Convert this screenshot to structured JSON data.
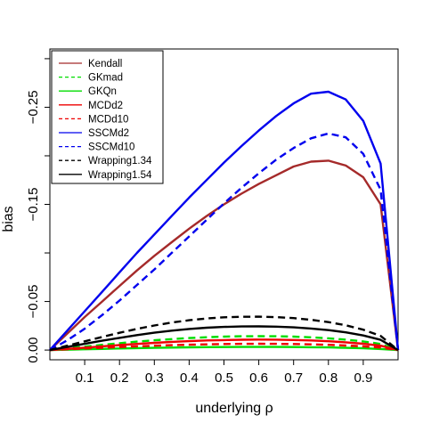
{
  "chart_data": {
    "type": "line",
    "title": "",
    "xlabel": "underlying ρ",
    "ylabel": "bias",
    "xlim": [
      0,
      1
    ],
    "ylim": [
      -0.31,
      0.01
    ],
    "y_reversed": true,
    "x_ticks": [
      {
        "value": 0.1,
        "label": "0.1"
      },
      {
        "value": 0.2,
        "label": "0.2"
      },
      {
        "value": 0.3,
        "label": "0.3"
      },
      {
        "value": 0.4,
        "label": "0.4"
      },
      {
        "value": 0.5,
        "label": "0.5"
      },
      {
        "value": 0.6,
        "label": "0.6"
      },
      {
        "value": 0.7,
        "label": "0.7"
      },
      {
        "value": 0.8,
        "label": "0.8"
      },
      {
        "value": 0.9,
        "label": "0.9"
      }
    ],
    "y_ticks": [
      {
        "value": 0.0,
        "label": "0.00"
      },
      {
        "value": -0.05,
        "label": "−0.05"
      },
      {
        "value": -0.15,
        "label": "−0.15"
      },
      {
        "value": -0.25,
        "label": "−0.25"
      }
    ],
    "y_minor_ticks": [
      -0.1,
      -0.2,
      -0.3
    ],
    "grid": false,
    "legend_position": "top-left",
    "x": [
      0,
      0.05,
      0.1,
      0.15,
      0.2,
      0.25,
      0.3,
      0.35,
      0.4,
      0.45,
      0.5,
      0.55,
      0.6,
      0.65,
      0.7,
      0.75,
      0.8,
      0.85,
      0.9,
      0.95,
      1.0
    ],
    "series": [
      {
        "name": "Kendall",
        "color": "#a52a2a",
        "dash": "solid",
        "values": [
          0,
          -0.017,
          -0.034,
          -0.05,
          -0.066,
          -0.082,
          -0.097,
          -0.111,
          -0.125,
          -0.138,
          -0.15,
          -0.161,
          -0.171,
          -0.18,
          -0.189,
          -0.194,
          -0.195,
          -0.19,
          -0.178,
          -0.15,
          0
        ]
      },
      {
        "name": "GKmad",
        "color": "#00dd00",
        "dash": "dashed",
        "values": [
          0,
          -0.0018,
          -0.0036,
          -0.0054,
          -0.0071,
          -0.0087,
          -0.0101,
          -0.0113,
          -0.0124,
          -0.0132,
          -0.0138,
          -0.0142,
          -0.0143,
          -0.0142,
          -0.0138,
          -0.0131,
          -0.0121,
          -0.0107,
          -0.0089,
          -0.0063,
          0
        ]
      },
      {
        "name": "GKQn",
        "color": "#00dd00",
        "dash": "solid",
        "values": [
          0,
          -0.0004,
          -0.0008,
          -0.0012,
          -0.0016,
          -0.002,
          -0.0023,
          -0.0026,
          -0.0028,
          -0.003,
          -0.0031,
          -0.0032,
          -0.0032,
          -0.0032,
          -0.0031,
          -0.0029,
          -0.0027,
          -0.0023,
          -0.0018,
          -0.0011,
          0
        ]
      },
      {
        "name": "MCDd2",
        "color": "#ee0000",
        "dash": "solid",
        "values": [
          0,
          -0.0012,
          -0.0025,
          -0.0038,
          -0.0051,
          -0.0063,
          -0.0074,
          -0.0084,
          -0.0092,
          -0.0099,
          -0.0103,
          -0.0106,
          -0.0108,
          -0.0107,
          -0.0104,
          -0.0099,
          -0.0091,
          -0.008,
          -0.0065,
          -0.0045,
          0
        ]
      },
      {
        "name": "MCDd10",
        "color": "#ee0000",
        "dash": "dashed",
        "values": [
          0,
          -0.0008,
          -0.0016,
          -0.0024,
          -0.0031,
          -0.0038,
          -0.0045,
          -0.005,
          -0.0055,
          -0.0059,
          -0.0062,
          -0.0064,
          -0.0065,
          -0.0064,
          -0.0062,
          -0.0059,
          -0.0054,
          -0.0047,
          -0.0038,
          -0.0026,
          0
        ]
      },
      {
        "name": "SSCMd2",
        "color": "#0000ee",
        "dash": "solid",
        "values": [
          0,
          -0.02,
          -0.04,
          -0.06,
          -0.08,
          -0.1,
          -0.119,
          -0.138,
          -0.157,
          -0.175,
          -0.193,
          -0.21,
          -0.226,
          -0.241,
          -0.254,
          -0.264,
          -0.266,
          -0.258,
          -0.236,
          -0.192,
          0
        ]
      },
      {
        "name": "SSCMd10",
        "color": "#0000ee",
        "dash": "dashed",
        "values": [
          0,
          -0.01,
          -0.022,
          -0.036,
          -0.051,
          -0.067,
          -0.083,
          -0.1,
          -0.117,
          -0.134,
          -0.151,
          -0.167,
          -0.182,
          -0.196,
          -0.208,
          -0.218,
          -0.223,
          -0.219,
          -0.202,
          -0.165,
          0
        ]
      },
      {
        "name": "Wrapping1.34",
        "color": "#000000",
        "dash": "dashed",
        "values": [
          0,
          -0.0045,
          -0.009,
          -0.0135,
          -0.0178,
          -0.0218,
          -0.0253,
          -0.0283,
          -0.0307,
          -0.0325,
          -0.0337,
          -0.0343,
          -0.0344,
          -0.0339,
          -0.0329,
          -0.0312,
          -0.0288,
          -0.0255,
          -0.021,
          -0.0146,
          0
        ]
      },
      {
        "name": "Wrapping1.54",
        "color": "#000000",
        "dash": "solid",
        "values": [
          0,
          -0.0032,
          -0.0064,
          -0.0096,
          -0.0126,
          -0.0154,
          -0.0179,
          -0.02,
          -0.0217,
          -0.023,
          -0.0238,
          -0.0243,
          -0.0244,
          -0.0241,
          -0.0234,
          -0.0222,
          -0.0205,
          -0.0182,
          -0.015,
          -0.0105,
          0
        ]
      }
    ]
  }
}
